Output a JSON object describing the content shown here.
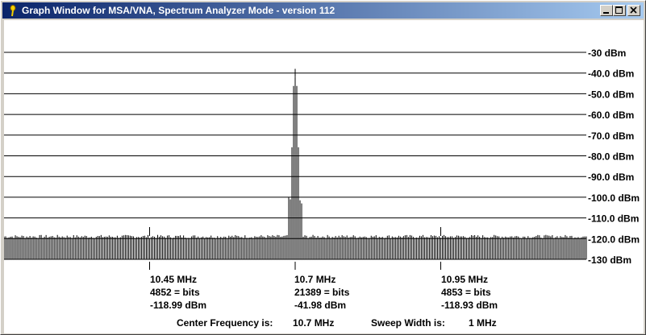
{
  "window": {
    "title": "Graph Window for MSA/VNA, Spectrum Analyzer Mode - version 112",
    "icon": "pin-icon",
    "controls": [
      "minimize-icon",
      "maximize-icon",
      "close-icon"
    ]
  },
  "graph": {
    "background": "#ffffff",
    "line_color": "#000000",
    "y_ticks": [
      "-30 dBm",
      "-40.0 dBm",
      "-50.0 dBm",
      "-60.0 dBm",
      "-70.0 dBm",
      "-80.0 dBm",
      "-90.0 dBm",
      "-100.0 dBm",
      "-110.0 dBm",
      "-120.0 dBm",
      "-130 dBm"
    ],
    "markers": [
      {
        "freq": "10.45 MHz",
        "bits": "4852 = bits",
        "dbm": "-118.99 dBm"
      },
      {
        "freq": "10.7 MHz",
        "bits": "21389 = bits",
        "dbm": "-41.98 dBm"
      },
      {
        "freq": "10.95 MHz",
        "bits": "4853 = bits",
        "dbm": "-118.93 dBm"
      }
    ]
  },
  "chart_data": {
    "type": "bar",
    "y_range": [
      -130,
      -30
    ],
    "x_range_mhz": [
      10.2,
      11.2
    ],
    "noise_floor_dbm": -119,
    "peak": {
      "x_mhz": 10.7,
      "dbm": -41.98
    }
  },
  "footer": {
    "center_label": "Center Frequency is:",
    "center_value": "10.7 MHz",
    "sweep_label": "Sweep Width is:",
    "sweep_value": "1 MHz"
  }
}
